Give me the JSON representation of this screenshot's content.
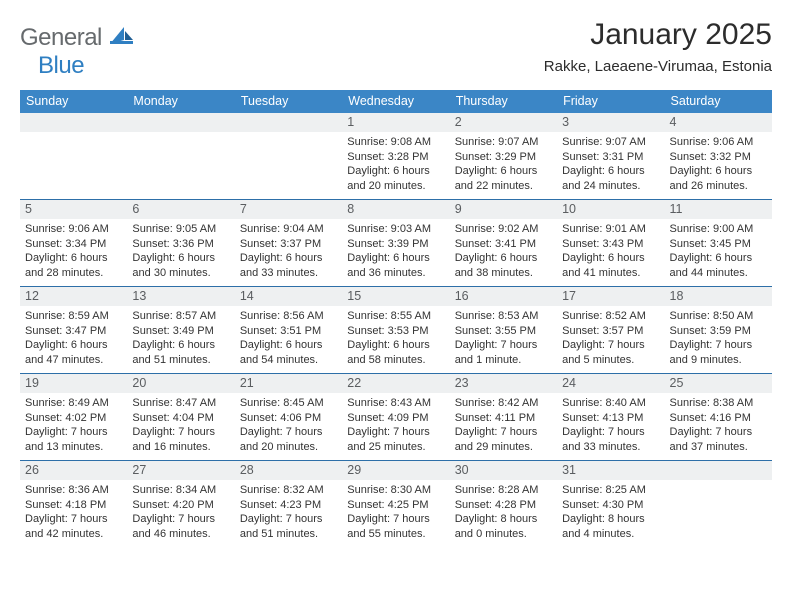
{
  "brand": {
    "part1": "General",
    "part2": "Blue"
  },
  "title": "January 2025",
  "location": "Rakke, Laeaene-Virumaa, Estonia",
  "weekdays": [
    "Sunday",
    "Monday",
    "Tuesday",
    "Wednesday",
    "Thursday",
    "Friday",
    "Saturday"
  ],
  "colors": {
    "header_bg": "#3b86c6",
    "header_text": "#ffffff",
    "daynum_bg": "#eef0f1",
    "rule": "#2d6fa8",
    "logo_gray": "#666a6d",
    "logo_blue": "#2f7fc2"
  },
  "weeks": [
    [
      {
        "n": "",
        "sunrise": "",
        "sunset": "",
        "dayA": "",
        "dayB": ""
      },
      {
        "n": "",
        "sunrise": "",
        "sunset": "",
        "dayA": "",
        "dayB": ""
      },
      {
        "n": "",
        "sunrise": "",
        "sunset": "",
        "dayA": "",
        "dayB": ""
      },
      {
        "n": "1",
        "sunrise": "Sunrise: 9:08 AM",
        "sunset": "Sunset: 3:28 PM",
        "dayA": "Daylight: 6 hours",
        "dayB": "and 20 minutes."
      },
      {
        "n": "2",
        "sunrise": "Sunrise: 9:07 AM",
        "sunset": "Sunset: 3:29 PM",
        "dayA": "Daylight: 6 hours",
        "dayB": "and 22 minutes."
      },
      {
        "n": "3",
        "sunrise": "Sunrise: 9:07 AM",
        "sunset": "Sunset: 3:31 PM",
        "dayA": "Daylight: 6 hours",
        "dayB": "and 24 minutes."
      },
      {
        "n": "4",
        "sunrise": "Sunrise: 9:06 AM",
        "sunset": "Sunset: 3:32 PM",
        "dayA": "Daylight: 6 hours",
        "dayB": "and 26 minutes."
      }
    ],
    [
      {
        "n": "5",
        "sunrise": "Sunrise: 9:06 AM",
        "sunset": "Sunset: 3:34 PM",
        "dayA": "Daylight: 6 hours",
        "dayB": "and 28 minutes."
      },
      {
        "n": "6",
        "sunrise": "Sunrise: 9:05 AM",
        "sunset": "Sunset: 3:36 PM",
        "dayA": "Daylight: 6 hours",
        "dayB": "and 30 minutes."
      },
      {
        "n": "7",
        "sunrise": "Sunrise: 9:04 AM",
        "sunset": "Sunset: 3:37 PM",
        "dayA": "Daylight: 6 hours",
        "dayB": "and 33 minutes."
      },
      {
        "n": "8",
        "sunrise": "Sunrise: 9:03 AM",
        "sunset": "Sunset: 3:39 PM",
        "dayA": "Daylight: 6 hours",
        "dayB": "and 36 minutes."
      },
      {
        "n": "9",
        "sunrise": "Sunrise: 9:02 AM",
        "sunset": "Sunset: 3:41 PM",
        "dayA": "Daylight: 6 hours",
        "dayB": "and 38 minutes."
      },
      {
        "n": "10",
        "sunrise": "Sunrise: 9:01 AM",
        "sunset": "Sunset: 3:43 PM",
        "dayA": "Daylight: 6 hours",
        "dayB": "and 41 minutes."
      },
      {
        "n": "11",
        "sunrise": "Sunrise: 9:00 AM",
        "sunset": "Sunset: 3:45 PM",
        "dayA": "Daylight: 6 hours",
        "dayB": "and 44 minutes."
      }
    ],
    [
      {
        "n": "12",
        "sunrise": "Sunrise: 8:59 AM",
        "sunset": "Sunset: 3:47 PM",
        "dayA": "Daylight: 6 hours",
        "dayB": "and 47 minutes."
      },
      {
        "n": "13",
        "sunrise": "Sunrise: 8:57 AM",
        "sunset": "Sunset: 3:49 PM",
        "dayA": "Daylight: 6 hours",
        "dayB": "and 51 minutes."
      },
      {
        "n": "14",
        "sunrise": "Sunrise: 8:56 AM",
        "sunset": "Sunset: 3:51 PM",
        "dayA": "Daylight: 6 hours",
        "dayB": "and 54 minutes."
      },
      {
        "n": "15",
        "sunrise": "Sunrise: 8:55 AM",
        "sunset": "Sunset: 3:53 PM",
        "dayA": "Daylight: 6 hours",
        "dayB": "and 58 minutes."
      },
      {
        "n": "16",
        "sunrise": "Sunrise: 8:53 AM",
        "sunset": "Sunset: 3:55 PM",
        "dayA": "Daylight: 7 hours",
        "dayB": "and 1 minute."
      },
      {
        "n": "17",
        "sunrise": "Sunrise: 8:52 AM",
        "sunset": "Sunset: 3:57 PM",
        "dayA": "Daylight: 7 hours",
        "dayB": "and 5 minutes."
      },
      {
        "n": "18",
        "sunrise": "Sunrise: 8:50 AM",
        "sunset": "Sunset: 3:59 PM",
        "dayA": "Daylight: 7 hours",
        "dayB": "and 9 minutes."
      }
    ],
    [
      {
        "n": "19",
        "sunrise": "Sunrise: 8:49 AM",
        "sunset": "Sunset: 4:02 PM",
        "dayA": "Daylight: 7 hours",
        "dayB": "and 13 minutes."
      },
      {
        "n": "20",
        "sunrise": "Sunrise: 8:47 AM",
        "sunset": "Sunset: 4:04 PM",
        "dayA": "Daylight: 7 hours",
        "dayB": "and 16 minutes."
      },
      {
        "n": "21",
        "sunrise": "Sunrise: 8:45 AM",
        "sunset": "Sunset: 4:06 PM",
        "dayA": "Daylight: 7 hours",
        "dayB": "and 20 minutes."
      },
      {
        "n": "22",
        "sunrise": "Sunrise: 8:43 AM",
        "sunset": "Sunset: 4:09 PM",
        "dayA": "Daylight: 7 hours",
        "dayB": "and 25 minutes."
      },
      {
        "n": "23",
        "sunrise": "Sunrise: 8:42 AM",
        "sunset": "Sunset: 4:11 PM",
        "dayA": "Daylight: 7 hours",
        "dayB": "and 29 minutes."
      },
      {
        "n": "24",
        "sunrise": "Sunrise: 8:40 AM",
        "sunset": "Sunset: 4:13 PM",
        "dayA": "Daylight: 7 hours",
        "dayB": "and 33 minutes."
      },
      {
        "n": "25",
        "sunrise": "Sunrise: 8:38 AM",
        "sunset": "Sunset: 4:16 PM",
        "dayA": "Daylight: 7 hours",
        "dayB": "and 37 minutes."
      }
    ],
    [
      {
        "n": "26",
        "sunrise": "Sunrise: 8:36 AM",
        "sunset": "Sunset: 4:18 PM",
        "dayA": "Daylight: 7 hours",
        "dayB": "and 42 minutes."
      },
      {
        "n": "27",
        "sunrise": "Sunrise: 8:34 AM",
        "sunset": "Sunset: 4:20 PM",
        "dayA": "Daylight: 7 hours",
        "dayB": "and 46 minutes."
      },
      {
        "n": "28",
        "sunrise": "Sunrise: 8:32 AM",
        "sunset": "Sunset: 4:23 PM",
        "dayA": "Daylight: 7 hours",
        "dayB": "and 51 minutes."
      },
      {
        "n": "29",
        "sunrise": "Sunrise: 8:30 AM",
        "sunset": "Sunset: 4:25 PM",
        "dayA": "Daylight: 7 hours",
        "dayB": "and 55 minutes."
      },
      {
        "n": "30",
        "sunrise": "Sunrise: 8:28 AM",
        "sunset": "Sunset: 4:28 PM",
        "dayA": "Daylight: 8 hours",
        "dayB": "and 0 minutes."
      },
      {
        "n": "31",
        "sunrise": "Sunrise: 8:25 AM",
        "sunset": "Sunset: 4:30 PM",
        "dayA": "Daylight: 8 hours",
        "dayB": "and 4 minutes."
      },
      {
        "n": "",
        "sunrise": "",
        "sunset": "",
        "dayA": "",
        "dayB": ""
      }
    ]
  ]
}
